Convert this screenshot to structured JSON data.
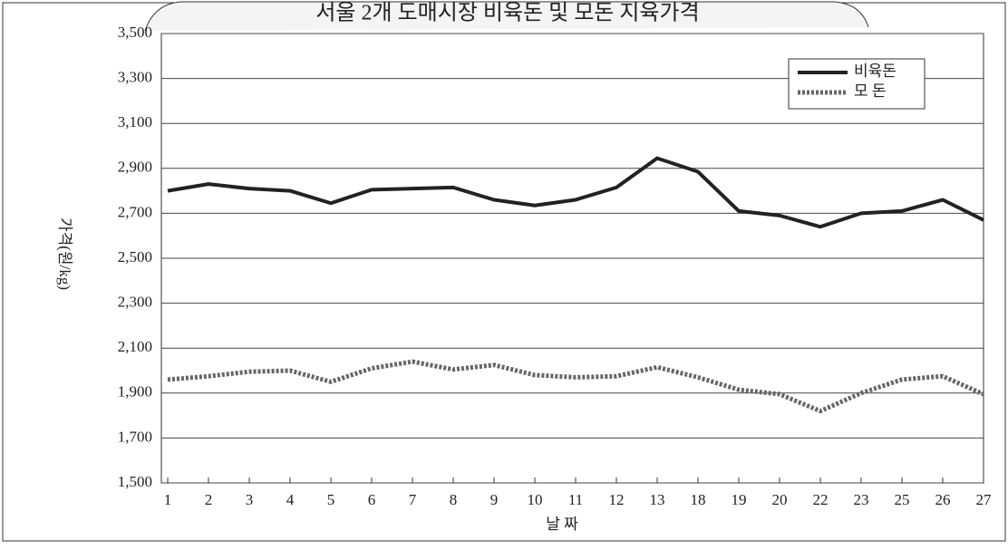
{
  "chart_data": {
    "type": "line",
    "title": "서울 2개 도매시장 비육돈 및 모돈 지육가격",
    "y_label": "가격(원/kg)",
    "x_label": "날 짜",
    "categories": [
      "1",
      "2",
      "3",
      "4",
      "5",
      "6",
      "7",
      "8",
      "9",
      "10",
      "11",
      "12",
      "13",
      "18",
      "19",
      "20",
      "22",
      "23",
      "25",
      "26",
      "27"
    ],
    "series": [
      {
        "name": "비육돈",
        "color": "#222222",
        "style": "solid",
        "values": [
          2800,
          2830,
          2810,
          2800,
          2745,
          2805,
          2810,
          2815,
          2760,
          2735,
          2760,
          2815,
          2945,
          2885,
          2710,
          2690,
          2640,
          2700,
          2710,
          2760,
          2670
        ]
      },
      {
        "name": "모 돈",
        "color": "#666666",
        "style": "dotted",
        "values": [
          1960,
          1975,
          1995,
          2000,
          1950,
          2010,
          2040,
          2005,
          2025,
          1980,
          1970,
          1975,
          2015,
          1970,
          1915,
          1895,
          1820,
          1900,
          1960,
          1975,
          1895
        ]
      }
    ],
    "ylim": [
      1500,
      3500
    ],
    "yticks": [
      {
        "value": 1500,
        "label": "1,500"
      },
      {
        "value": 1700,
        "label": "1,700"
      },
      {
        "value": 1900,
        "label": "1,900"
      },
      {
        "value": 2100,
        "label": "2,100"
      },
      {
        "value": 2300,
        "label": "2,300"
      },
      {
        "value": 2500,
        "label": "2,500"
      },
      {
        "value": 2700,
        "label": "2,700"
      },
      {
        "value": 2900,
        "label": "2,900"
      },
      {
        "value": 3100,
        "label": "3,100"
      },
      {
        "value": 3300,
        "label": "3,300"
      },
      {
        "value": 3500,
        "label": "3,500"
      }
    ],
    "grid": true,
    "legend": "top-right"
  }
}
